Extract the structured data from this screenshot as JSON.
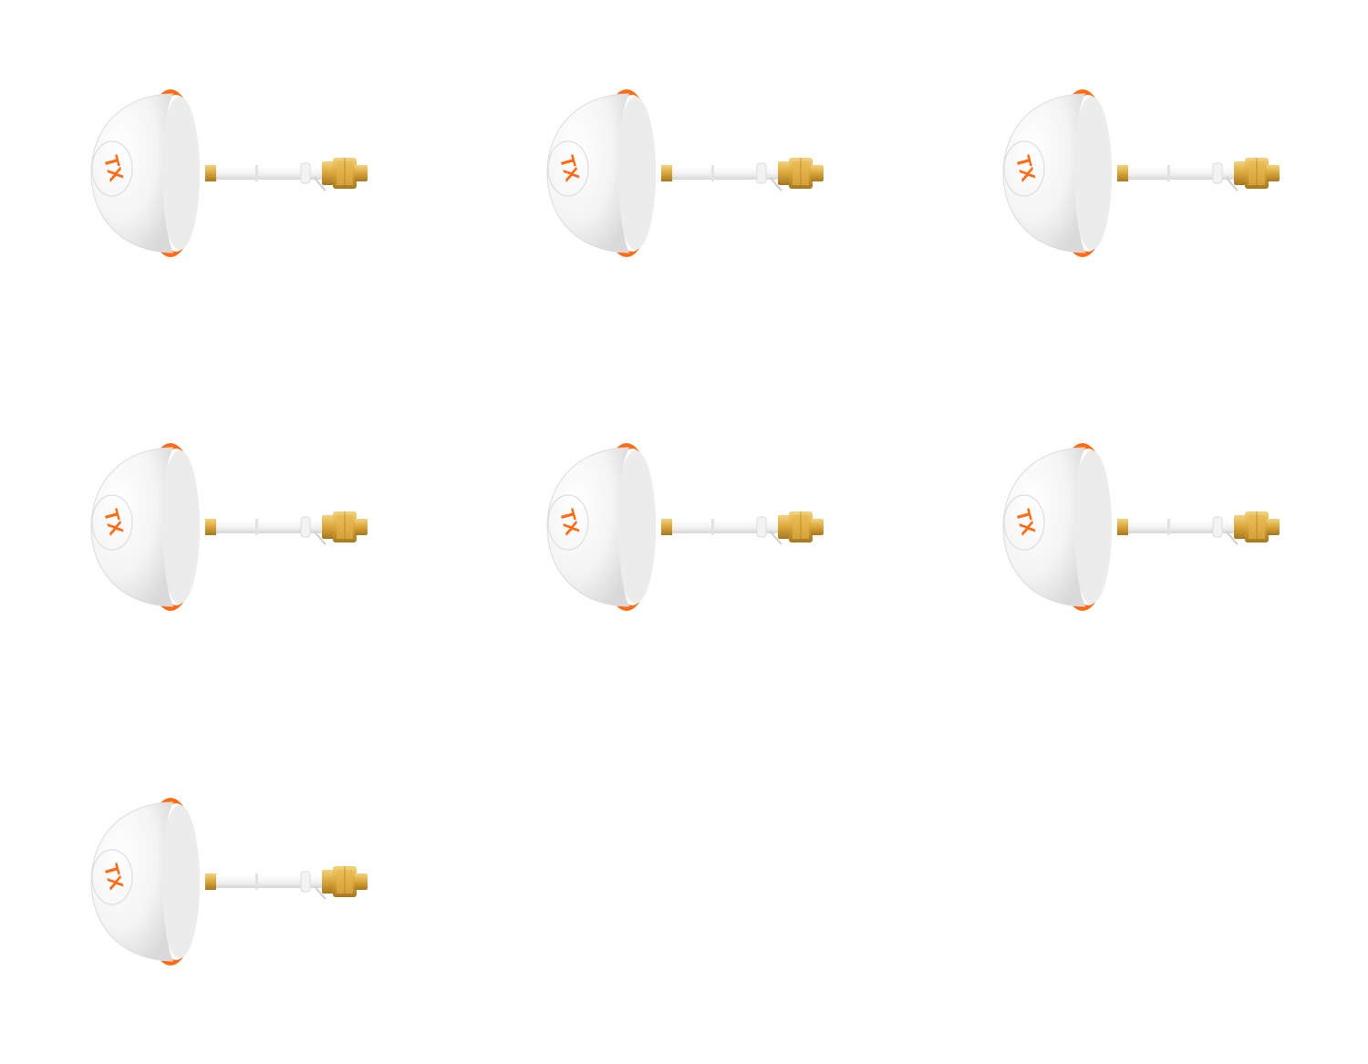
{
  "product": {
    "label_text": "TX",
    "count": 7,
    "colors": {
      "cap": "#f4f4f4",
      "cap_shadow": "#d9d9d9",
      "ring": "#ff6a13",
      "cable": "#f2f2f2",
      "connector_gold": "#d9a63a",
      "connector_dark": "#a8771c",
      "label": "#ff6a13"
    }
  },
  "items": [
    {
      "label": "TX"
    },
    {
      "label": "TX"
    },
    {
      "label": "TX"
    },
    {
      "label": "TX"
    },
    {
      "label": "TX"
    },
    {
      "label": "TX"
    },
    {
      "label": "TX"
    }
  ]
}
